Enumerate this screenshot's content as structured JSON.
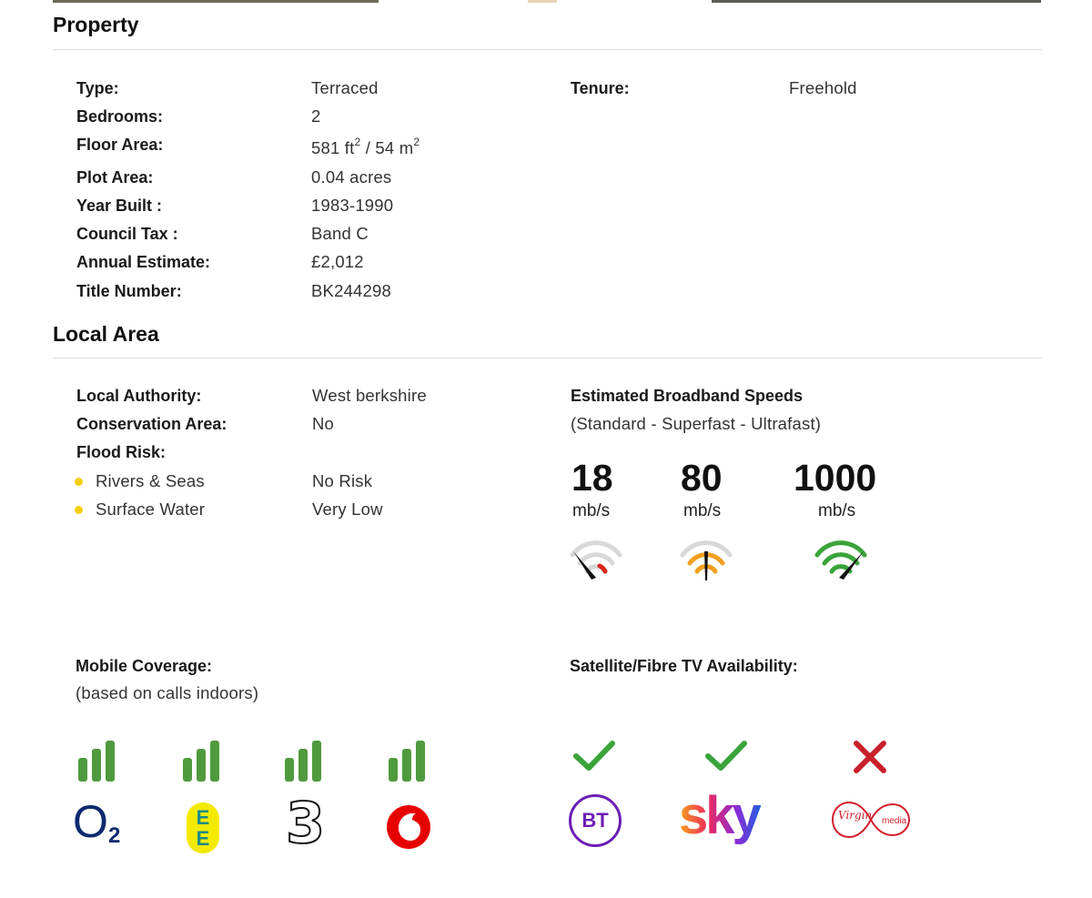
{
  "property": {
    "heading": "Property",
    "rows": [
      {
        "label": "Type:",
        "value": "Terraced"
      },
      {
        "label": "Bedrooms:",
        "value": "2"
      },
      {
        "label": "Floor Area:",
        "value_ft": "581 ft",
        "sup1": "2",
        "value_m": " / 54 m",
        "sup2": "2"
      },
      {
        "label": "Plot Area:",
        "value": "0.04 acres"
      },
      {
        "label": "Year Built :",
        "value": "1983-1990"
      },
      {
        "label": "Council Tax :",
        "value": "Band C"
      },
      {
        "label": "Annual Estimate:",
        "value": "£2,012"
      },
      {
        "label": "Title Number:",
        "value": "BK244298"
      }
    ],
    "tenure": {
      "label": "Tenure:",
      "value": "Freehold"
    }
  },
  "local_area": {
    "heading": "Local Area",
    "rows": [
      {
        "label": "Local Authority:",
        "value": "West berkshire"
      },
      {
        "label": "Conservation Area:",
        "value": "No"
      },
      {
        "label": "Flood Risk:"
      }
    ],
    "flood": [
      {
        "label": "Rivers & Seas",
        "value": "No Risk"
      },
      {
        "label": "Surface Water",
        "value": "Very Low"
      }
    ],
    "flood_dot_color": "#f5cf0b"
  },
  "broadband": {
    "title": "Estimated Broadband Speeds",
    "subtitle": "(Standard - Superfast - Ultrafast)",
    "speeds": [
      {
        "value": "18",
        "unit": "mb/s",
        "gauge_color": "#d9271c",
        "gauge_icon": "speedometer-low-icon"
      },
      {
        "value": "80",
        "unit": "mb/s",
        "gauge_color": "#f0a020",
        "gauge_icon": "speedometer-medium-icon"
      },
      {
        "value": "1000",
        "unit": "mb/s",
        "gauge_color": "#3aa43a",
        "gauge_icon": "speedometer-high-icon"
      }
    ]
  },
  "mobile": {
    "title": "Mobile Coverage:",
    "subtitle": "(based on calls indoors)",
    "signal_color": "#4f9a3e",
    "operators": [
      {
        "name": "O2",
        "logo_text": "O",
        "logo_sub": "2",
        "signal": "3 of 3 bars"
      },
      {
        "name": "EE",
        "logo_text": "E",
        "logo_text2": "E",
        "signal": "3 of 3 bars"
      },
      {
        "name": "Three",
        "logo_text": "3",
        "signal": "3 of 3 bars"
      },
      {
        "name": "Vodafone",
        "signal": "3 of 3 bars"
      }
    ]
  },
  "tv": {
    "title": "Satellite/Fibre TV Availability:",
    "providers": [
      {
        "name": "BT",
        "logo_text": "BT",
        "available": true,
        "status_icon": "check-icon",
        "color": "#3aa43a"
      },
      {
        "name": "Sky",
        "logo_text": "sky",
        "available": true,
        "status_icon": "check-icon",
        "color": "#3aa43a"
      },
      {
        "name": "Virgin Media",
        "logo_text": "Virgin",
        "logo_text2": "media",
        "available": false,
        "status_icon": "cross-icon",
        "color": "#c8202b"
      }
    ]
  }
}
